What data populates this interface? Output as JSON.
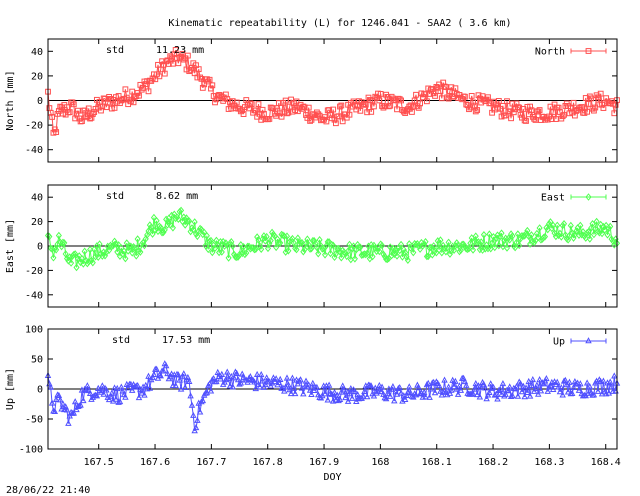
{
  "page": {
    "title": "Kinematic repeatability (L) for 1246.041 - SAA2  (  3.6 km)",
    "timestamp": "28/06/22 21:40"
  },
  "chart_data": [
    {
      "type": "scatter",
      "name": "north",
      "ylabel": "North [mm]",
      "legend": "North",
      "legend_position": "top-right",
      "color": "#ff5050",
      "marker": "square",
      "std_label": "std",
      "std_value": "11.23 mm",
      "ylim": [
        -50,
        50
      ],
      "yticks": [
        -40,
        -20,
        0,
        20,
        40
      ],
      "xlim": [
        167.41,
        168.42
      ],
      "x": [
        167.41,
        167.42,
        167.43,
        167.45,
        167.47,
        167.5,
        167.53,
        167.56,
        167.58,
        167.6,
        167.62,
        167.64,
        167.66,
        167.67,
        167.68,
        167.7,
        167.72,
        167.75,
        167.8,
        167.85,
        167.9,
        167.95,
        168.0,
        168.05,
        168.1,
        168.15,
        168.2,
        168.25,
        168.3,
        168.35,
        168.4,
        168.42
      ],
      "values": [
        5,
        -30,
        -10,
        -5,
        -15,
        -5,
        0,
        5,
        10,
        20,
        30,
        35,
        30,
        25,
        20,
        8,
        0,
        -5,
        -10,
        -5,
        -15,
        -8,
        0,
        -5,
        10,
        0,
        -5,
        -10,
        -10,
        -5,
        0,
        -5
      ]
    },
    {
      "type": "scatter",
      "name": "east",
      "ylabel": "East [mm]",
      "legend": "East",
      "legend_position": "top-right",
      "color": "#50ff50",
      "marker": "diamond",
      "std_label": "std",
      "std_value": "8.62 mm",
      "ylim": [
        -50,
        50
      ],
      "yticks": [
        -40,
        -20,
        0,
        20,
        40
      ],
      "xlim": [
        167.41,
        168.42
      ],
      "x": [
        167.41,
        167.42,
        167.43,
        167.45,
        167.47,
        167.5,
        167.53,
        167.56,
        167.58,
        167.6,
        167.62,
        167.64,
        167.66,
        167.67,
        167.68,
        167.7,
        167.72,
        167.75,
        167.8,
        167.85,
        167.9,
        167.95,
        168.0,
        168.05,
        168.1,
        168.15,
        168.2,
        168.25,
        168.3,
        168.35,
        168.4,
        168.42
      ],
      "values": [
        5,
        -5,
        5,
        -15,
        -10,
        -5,
        -2,
        -5,
        5,
        20,
        15,
        25,
        20,
        15,
        10,
        0,
        -2,
        -5,
        5,
        0,
        -2,
        -5,
        -5,
        -5,
        0,
        0,
        5,
        5,
        15,
        10,
        15,
        5
      ]
    },
    {
      "type": "scatter",
      "name": "up",
      "ylabel": "Up [mm]",
      "legend": "Up",
      "legend_position": "top-right",
      "color": "#5050ff",
      "marker": "triangle",
      "std_label": "std",
      "std_value": "17.53 mm",
      "xlabel": "DOY",
      "ylim": [
        -100,
        100
      ],
      "yticks": [
        -100,
        -50,
        0,
        50,
        100
      ],
      "xlim": [
        167.41,
        168.42
      ],
      "xticks": [
        "167.5",
        "167.6",
        "167.7",
        "167.8",
        "167.9",
        "168",
        "168.1",
        "168.2",
        "168.3",
        "168.4"
      ],
      "x": [
        167.41,
        167.42,
        167.43,
        167.45,
        167.47,
        167.5,
        167.53,
        167.56,
        167.58,
        167.6,
        167.62,
        167.64,
        167.66,
        167.67,
        167.68,
        167.7,
        167.72,
        167.75,
        167.8,
        167.85,
        167.9,
        167.95,
        168.0,
        168.05,
        168.1,
        168.15,
        168.2,
        168.25,
        168.3,
        168.35,
        168.4,
        168.42
      ],
      "values": [
        10,
        -30,
        -20,
        -50,
        -10,
        0,
        -10,
        -5,
        0,
        20,
        30,
        10,
        15,
        -60,
        -30,
        10,
        20,
        15,
        10,
        5,
        -5,
        -10,
        -5,
        -10,
        0,
        5,
        -5,
        0,
        5,
        0,
        5,
        10
      ]
    }
  ]
}
